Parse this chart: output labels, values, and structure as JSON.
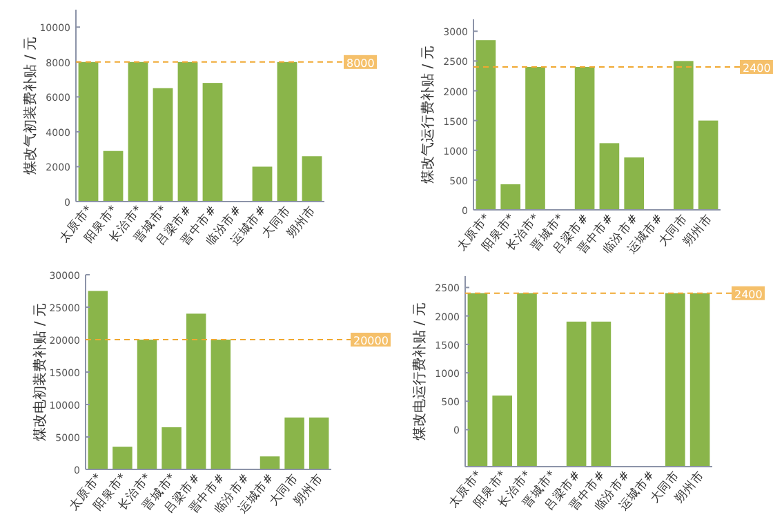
{
  "chart_data": [
    {
      "type": "bar",
      "ylabel": "煤改气初装费补贴 / 元",
      "categories": [
        "太原市*",
        "阳泉市*",
        "长治市*",
        "晋城市*",
        "吕梁市#",
        "晋中市#",
        "临汾市#",
        "运城市#",
        "大同市",
        "朔州市"
      ],
      "values": [
        8000,
        2900,
        8000,
        6500,
        8000,
        6800,
        0,
        2000,
        8000,
        2600
      ],
      "color": "#8ab54a",
      "ylim": [
        0,
        11000
      ],
      "yticks": [
        0,
        2000,
        4000,
        6000,
        8000,
        10000
      ],
      "grid": false,
      "ref_lines": [
        {
          "axis": "y",
          "value": 8000,
          "label": "8000",
          "color": "#f0a830",
          "line_style": "dashed"
        }
      ]
    },
    {
      "type": "bar",
      "ylabel": "煤改气运行费补贴 / 元",
      "categories": [
        "太原市*",
        "阳泉市*",
        "长治市*",
        "晋城市*",
        "吕梁市#",
        "晋中市#",
        "临汾市#",
        "运城市#",
        "大同市",
        "朔州市"
      ],
      "values": [
        2850,
        430,
        2400,
        0,
        2400,
        1120,
        880,
        0,
        2500,
        1500
      ],
      "color": "#8ab54a",
      "ylim": [
        0,
        3200
      ],
      "yticks": [
        0,
        500,
        1000,
        1500,
        2000,
        2500,
        3000
      ],
      "grid": false,
      "ref_lines": [
        {
          "axis": "y",
          "value": 2400,
          "label": "2400",
          "color": "#f0a830",
          "line_style": "dashed"
        }
      ]
    },
    {
      "type": "bar",
      "ylabel": "煤改电初装费补贴 / 元",
      "categories": [
        "太原市*",
        "阳泉市*",
        "长治市*",
        "晋城市*",
        "吕梁市#",
        "晋中市#",
        "临汾市#",
        "运城市#",
        "大同市",
        "朔州市"
      ],
      "values": [
        27500,
        3500,
        20000,
        6500,
        24000,
        20000,
        0,
        2000,
        8000,
        8000
      ],
      "color": "#8ab54a",
      "ylim": [
        0,
        30000
      ],
      "yticks": [
        0,
        5000,
        10000,
        15000,
        20000,
        25000,
        30000
      ],
      "grid": false,
      "ref_lines": [
        {
          "axis": "y",
          "value": 20000,
          "label": "20000",
          "color": "#f0a830",
          "line_style": "dashed"
        }
      ]
    },
    {
      "type": "bar",
      "ylabel": "煤改电运行费补贴 / 元",
      "categories": [
        "太原市*",
        "阳泉市*",
        "长治市*",
        "晋城市*",
        "吕梁市#",
        "晋中市#",
        "临汾市#",
        "运城市#",
        "大同市",
        "朔州市"
      ],
      "base": [
        -650,
        -650,
        -650,
        null,
        -650,
        -650,
        null,
        null,
        -650,
        -650
      ],
      "values": [
        3050,
        1250,
        3050,
        null,
        2550,
        2550,
        null,
        null,
        3050,
        3050
      ],
      "color": "#8ab54a",
      "ylim": [
        -650,
        2700
      ],
      "yticks": [
        0,
        500,
        1000,
        1500,
        2000,
        2500
      ],
      "grid": false,
      "ref_lines": [
        {
          "axis": "y",
          "value": 2400,
          "label": "2400",
          "color": "#f0a830",
          "line_style": "dashed"
        }
      ]
    }
  ]
}
